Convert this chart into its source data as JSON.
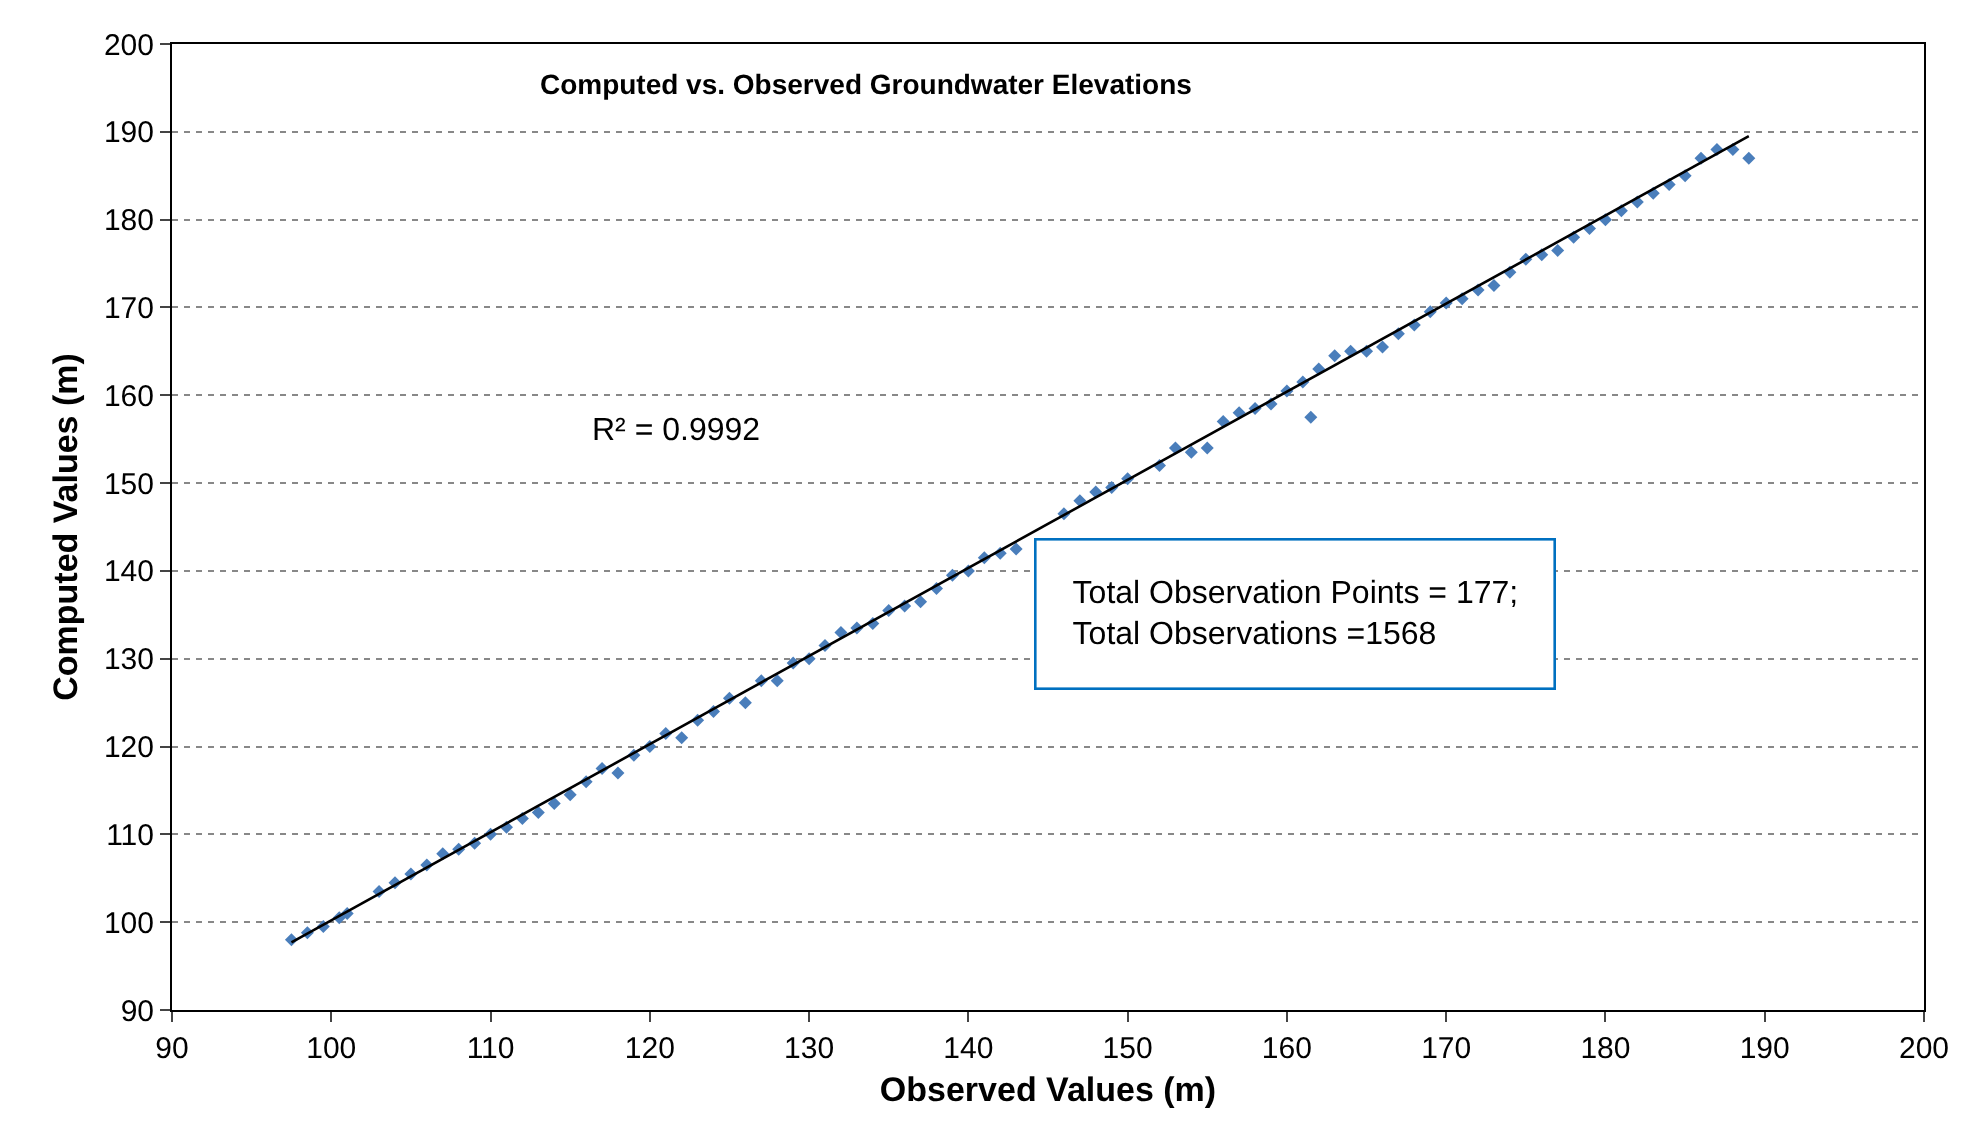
{
  "chart_data": {
    "type": "scatter",
    "title": "Computed vs. Observed Groundwater Elevations",
    "xlabel": "Observed Values (m)",
    "ylabel": "Computed Values (m)",
    "xlim": [
      90,
      200
    ],
    "xticks": [
      90,
      100,
      110,
      120,
      130,
      140,
      150,
      160,
      170,
      180,
      190,
      200
    ],
    "ylim": [
      90,
      200
    ],
    "yticks": [
      90,
      100,
      110,
      120,
      130,
      140,
      150,
      160,
      170,
      180,
      190,
      200
    ],
    "grid": "y",
    "legend": false,
    "annotations": [
      "R² = 0.9992",
      "Total Observation Points = 177;\nTotal Observations =1568"
    ],
    "series": [
      {
        "marker": "diamond",
        "color": "#4a7ebb",
        "x": [
          97.5,
          98.5,
          99.5,
          100.5,
          101,
          103,
          104,
          105,
          106,
          107,
          108,
          109,
          110,
          111,
          112,
          113,
          114,
          115,
          116,
          117,
          118,
          119,
          120,
          121,
          122,
          123,
          124,
          125,
          126,
          127,
          128,
          129,
          130,
          131,
          132,
          133,
          134,
          135,
          136,
          137,
          138,
          139,
          140,
          141,
          142,
          143,
          146,
          147,
          148,
          149,
          150,
          152,
          153,
          154,
          155,
          156,
          157,
          158,
          159,
          160,
          161,
          161.5,
          162,
          163,
          164,
          165,
          166,
          167,
          168,
          169,
          170,
          171,
          172,
          173,
          174,
          175,
          176,
          177,
          178,
          179,
          180,
          181,
          182,
          183,
          184,
          185,
          186,
          187,
          188,
          189
        ],
        "values": [
          98,
          98.8,
          99.5,
          100.5,
          101,
          103.5,
          104.5,
          105.5,
          106.5,
          107.8,
          108.3,
          109,
          110,
          110.8,
          111.8,
          112.5,
          113.5,
          114.5,
          116,
          117.5,
          117,
          119,
          120,
          121.5,
          121,
          123,
          124,
          125.5,
          125,
          127.5,
          127.5,
          129.5,
          130,
          131.5,
          133,
          133.5,
          134,
          135.5,
          136,
          136.5,
          138,
          139.5,
          140,
          141.5,
          142,
          142.5,
          146.5,
          148,
          149,
          149.5,
          150.5,
          152,
          154,
          153.5,
          154,
          157,
          158,
          158.5,
          159,
          160.5,
          161.5,
          157.5,
          163,
          164.5,
          165,
          165,
          165.5,
          167,
          168,
          169.5,
          170.5,
          171,
          172,
          172.5,
          174,
          175.5,
          176,
          176.5,
          178,
          179,
          180,
          181,
          182,
          183,
          184,
          185,
          187,
          188,
          188,
          187
        ]
      },
      {
        "type": "line",
        "color": "#000000",
        "x": [
          97.5,
          189
        ],
        "values": [
          97.7,
          189.5
        ]
      }
    ]
  }
}
